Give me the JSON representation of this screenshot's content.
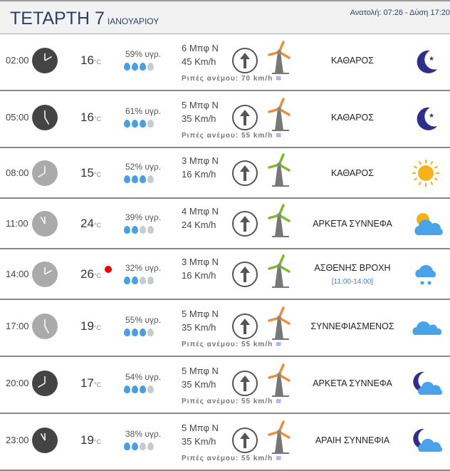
{
  "header": {
    "day": "ΤΕΤΑΡΤΗ 7",
    "month": "ΙΑΝΟΥΑΡΙΟΥ",
    "sun": "Ανατολή: 07:26 - Δύση 17:20"
  },
  "unit": "°C",
  "colors": {
    "drop_on": "#4a9fe0",
    "drop_off": "#c4ccd4",
    "turbine_strong": "#e8903a",
    "turbine_mild": "#7dbb2e",
    "night_clock": "#444444",
    "day_clock": "#aaaaaa"
  },
  "rows": [
    {
      "time": "02:00",
      "night": true,
      "temp": "16",
      "hum": "59% υγρ.",
      "drops": 3,
      "bft": "6 Μπφ N",
      "kmh": "45 Km/h",
      "gust": "Ριπές ανέμου: 70 km/h",
      "cond": "ΚΑΘΑΡΟΣ",
      "icon": "moon-icon"
    },
    {
      "time": "05:00",
      "night": true,
      "temp": "16",
      "hum": "61% υγρ.",
      "drops": 3,
      "bft": "5 Μπφ N",
      "kmh": "35 Km/h",
      "gust": "Ριπές ανέμου: 55 km/h",
      "cond": "ΚΑΘΑΡΟΣ",
      "icon": "moon-icon"
    },
    {
      "time": "08:00",
      "night": false,
      "temp": "15",
      "hum": "52% υγρ.",
      "drops": 3,
      "bft": "3 Μπφ N",
      "kmh": "16 Km/h",
      "cond": "ΚΑΘΑΡΟΣ",
      "icon": "sun-icon"
    },
    {
      "time": "11:00",
      "night": false,
      "temp": "24",
      "hum": "39% υγρ.",
      "drops": 2,
      "bft": "4 Μπφ N",
      "kmh": "24 Km/h",
      "cond": "ΑΡΚΕΤΑ ΣΥΝΝΕΦΑ",
      "icon": "sun-cloud-icon"
    },
    {
      "time": "14:00",
      "night": false,
      "temp": "26",
      "hot": true,
      "hum": "32% υγρ.",
      "drops": 2,
      "bft": "3 Μπφ N",
      "kmh": "16 Km/h",
      "cond": "ΑΣΘΕΝΗΣ ΒΡΟΧΗ",
      "sub": "[11:00-14:00]",
      "icon": "rain-icon"
    },
    {
      "time": "17:00",
      "night": false,
      "temp": "19",
      "hum": "55% υγρ.",
      "drops": 3,
      "bft": "5 Μπφ N",
      "kmh": "35 Km/h",
      "gust": "Ριπές ανέμου: 55 km/h",
      "cond": "ΣΥΝΝΕΦΙΑΣΜΕΝΟΣ",
      "icon": "clouds-icon"
    },
    {
      "time": "20:00",
      "night": true,
      "temp": "17",
      "hum": "54% υγρ.",
      "drops": 3,
      "bft": "5 Μπφ N",
      "kmh": "35 Km/h",
      "gust": "Ριπές ανέμου: 55 km/h",
      "cond": "ΑΡΚΕΤΑ ΣΥΝΝΕΦΑ",
      "icon": "moon-cloud-icon"
    },
    {
      "time": "23:00",
      "night": true,
      "temp": "19",
      "hum": "38% υγρ.",
      "drops": 2,
      "bft": "5 Μπφ N",
      "kmh": "35 Km/h",
      "gust": "Ριπές ανέμου: 55 km/h",
      "cond": "ΑΡΑΙΗ ΣΥΝΝΕΦΙΑ",
      "icon": "moon-cloud-icon"
    }
  ]
}
